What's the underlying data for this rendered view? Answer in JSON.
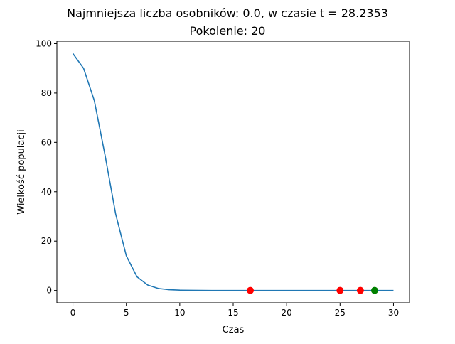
{
  "chart_data": {
    "type": "line",
    "title_line1": "Najmniejsza liczba osobników: 0.0, w czasie t = 28.2353",
    "title_line2": "Pokolenie: 20",
    "xlabel": "Czas",
    "ylabel": "Wielkość populacji",
    "xlim": [
      -1.5,
      31.5
    ],
    "ylim": [
      -5,
      101
    ],
    "xticks": [
      0,
      5,
      10,
      15,
      20,
      25,
      30
    ],
    "yticks": [
      0,
      20,
      40,
      60,
      80,
      100
    ],
    "grid": false,
    "line_color": "#1f77b4",
    "series": [
      {
        "x": [
          0,
          1,
          2,
          3,
          4,
          5,
          6,
          7,
          8,
          9,
          10,
          11,
          12,
          13,
          14,
          15,
          16,
          17,
          18,
          19,
          20,
          21,
          22,
          23,
          24,
          25,
          26,
          27,
          28,
          29,
          30
        ],
        "values": [
          96,
          90,
          77,
          55,
          31,
          14,
          5.5,
          2.2,
          0.8,
          0.3,
          0.12,
          0.05,
          0.02,
          0,
          0,
          0,
          0,
          0,
          0,
          0,
          0,
          0,
          0,
          0,
          0,
          0,
          0,
          0,
          0,
          0,
          0
        ]
      }
    ],
    "markers": [
      {
        "x": 16.6,
        "y": 0,
        "color": "#ff0000"
      },
      {
        "x": 25.0,
        "y": 0,
        "color": "#ff0000"
      },
      {
        "x": 26.9,
        "y": 0,
        "color": "#ff0000"
      },
      {
        "x": 28.2353,
        "y": 0,
        "color": "#008000"
      }
    ]
  }
}
